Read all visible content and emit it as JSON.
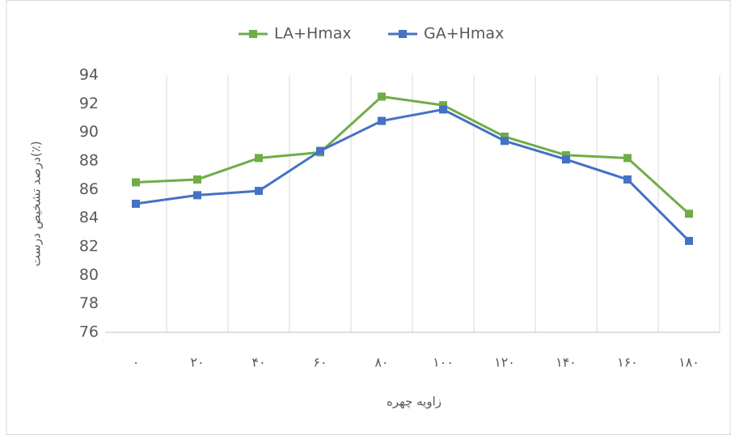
{
  "chart_data": {
    "type": "line",
    "x_label": "زاویه چهره",
    "y_label": "درصد تشخیص درست(٪)",
    "categories": [
      "۰",
      "۲۰",
      "۴۰",
      "۶۰",
      "۸۰",
      "۱۰۰",
      "۱۲۰",
      "۱۴۰",
      "۱۶۰",
      "۱۸۰"
    ],
    "series": [
      {
        "name": "LA+Hmax",
        "color": "#70ad47",
        "values": [
          86.5,
          86.7,
          88.2,
          88.6,
          92.5,
          91.9,
          89.7,
          88.4,
          88.2,
          84.3
        ]
      },
      {
        "name": "GA+Hmax",
        "color": "#4472c4",
        "values": [
          85.0,
          85.6,
          85.9,
          88.7,
          90.8,
          91.6,
          89.4,
          88.1,
          86.7,
          82.4
        ]
      }
    ],
    "ylim": [
      76,
      94
    ],
    "yticks": [
      76,
      78,
      80,
      82,
      84,
      86,
      88,
      90,
      92,
      94
    ],
    "legend": "top"
  }
}
